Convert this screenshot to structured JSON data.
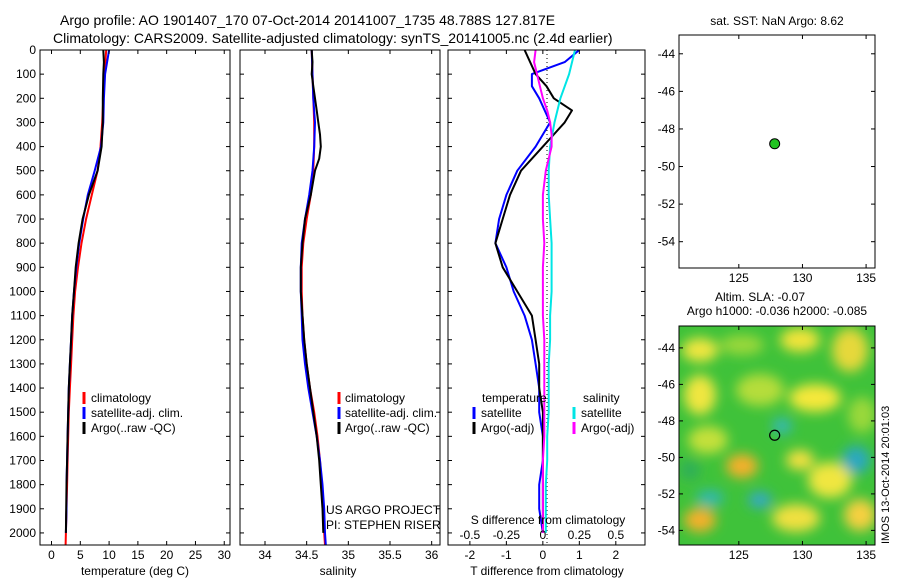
{
  "header": {
    "line1": "Argo profile: AO 1901407_170 07-Oct-2014 20141007_1735 48.788S 127.817E",
    "line2": "Climatology: CARS2009. Satellite-adjusted climatology: synTS_20141005.nc (2.4d earlier)"
  },
  "colors": {
    "climatology": "#ff0000",
    "satellite": "#0000ff",
    "argo": "#000000",
    "sal_satellite": "#00e5e5",
    "sal_argo": "#ff00ff",
    "float_marker": "#22c422"
  },
  "depth_ticks": [
    0,
    100,
    200,
    300,
    400,
    500,
    600,
    700,
    800,
    900,
    1000,
    1100,
    1200,
    1300,
    1400,
    1500,
    1600,
    1700,
    1800,
    1900,
    2000
  ],
  "chart_data": [
    {
      "type": "line",
      "id": "temperature-profile",
      "xlabel": "temperature (deg C)",
      "xlim": [
        -2,
        31
      ],
      "xticks": [
        0,
        5,
        10,
        15,
        20,
        25,
        30
      ],
      "ylim": [
        0,
        2050
      ],
      "yreversed": true,
      "legend_position": "bottom-center",
      "series": [
        {
          "name": "climatology",
          "color": "#ff0000",
          "depth": [
            0,
            100,
            200,
            300,
            400,
            500,
            600,
            700,
            800,
            900,
            1000,
            1100,
            1200,
            1300,
            1400,
            1500,
            1600,
            1700,
            1800,
            1900,
            2000,
            2050
          ],
          "x": [
            9.5,
            9.2,
            9.0,
            8.8,
            8.5,
            8.0,
            7.0,
            6.0,
            5.2,
            4.6,
            4.1,
            3.8,
            3.6,
            3.4,
            3.2,
            3.0,
            2.9,
            2.8,
            2.7,
            2.6,
            2.5,
            2.45
          ]
        },
        {
          "name": "satellite-adj. clim.",
          "color": "#0000ff",
          "depth": [
            0,
            100,
            200,
            300,
            400,
            500,
            600,
            700,
            800,
            900,
            1000,
            1100,
            1200,
            1300,
            1400,
            1500,
            1600,
            1700,
            1800,
            1900,
            2000
          ],
          "x": [
            10.0,
            9.3,
            9.1,
            9.0,
            8.6,
            7.5,
            6.3,
            5.5,
            4.8,
            4.3,
            3.9,
            3.6,
            3.4,
            3.2,
            3.0,
            2.9,
            2.8,
            2.7,
            2.6,
            2.6,
            2.5
          ]
        },
        {
          "name": "Argo(..raw -QC)",
          "color": "#000000",
          "depth": [
            0,
            50,
            100,
            200,
            300,
            400,
            500,
            600,
            700,
            800,
            900,
            1000,
            1100,
            1200,
            1300,
            1400,
            1500,
            1600,
            1700,
            1800,
            1900,
            2000
          ],
          "x": [
            9.0,
            9.1,
            9.0,
            8.9,
            8.9,
            8.7,
            8.0,
            6.5,
            5.4,
            4.7,
            4.2,
            3.9,
            3.6,
            3.4,
            3.2,
            3.0,
            2.9,
            2.8,
            2.7,
            2.6,
            2.55,
            2.5
          ]
        }
      ]
    },
    {
      "type": "line",
      "id": "salinity-profile",
      "xlabel": "salinity",
      "xlim": [
        33.7,
        36.1
      ],
      "xticks": [
        34,
        34.5,
        35,
        35.5,
        36
      ],
      "ylim": [
        0,
        2050
      ],
      "yreversed": true,
      "legend_position": "bottom-center",
      "annotation_lines": [
        "US ARGO PROJECT",
        "PI: STEPHEN RISER"
      ],
      "series": [
        {
          "name": "climatology",
          "color": "#ff0000",
          "depth": [
            0,
            100,
            200,
            300,
            400,
            500,
            600,
            700,
            800,
            900,
            1000,
            1100,
            1200,
            1300,
            1400,
            1500,
            1600,
            1700,
            1800,
            1900,
            2000,
            2050
          ],
          "x": [
            34.56,
            34.57,
            34.58,
            34.59,
            34.59,
            34.58,
            34.55,
            34.5,
            34.46,
            34.44,
            34.44,
            34.45,
            34.47,
            34.5,
            34.54,
            34.59,
            34.63,
            34.66,
            34.68,
            34.7,
            34.71,
            34.72
          ]
        },
        {
          "name": "satellite-adj. clim.",
          "color": "#0000ff",
          "depth": [
            0,
            100,
            200,
            300,
            400,
            500,
            600,
            700,
            800,
            900,
            1000,
            1100,
            1200,
            1300,
            1400,
            1500,
            1600,
            1700,
            1800,
            1900,
            2000,
            2050
          ],
          "x": [
            34.56,
            34.57,
            34.58,
            34.6,
            34.59,
            34.57,
            34.53,
            34.48,
            34.44,
            34.43,
            34.43,
            34.44,
            34.45,
            34.48,
            34.52,
            34.57,
            34.62,
            34.66,
            34.69,
            34.71,
            34.72,
            34.73
          ]
        },
        {
          "name": "Argo(..raw -QC)",
          "color": "#000000",
          "depth": [
            0,
            50,
            100,
            150,
            200,
            250,
            300,
            350,
            400,
            450,
            500,
            600,
            700,
            800,
            900,
            1000,
            1100,
            1200,
            1300,
            1400,
            1500,
            1600,
            1700,
            1800,
            1900,
            2000
          ],
          "x": [
            34.56,
            34.57,
            34.56,
            34.58,
            34.6,
            34.62,
            34.64,
            34.66,
            34.67,
            34.65,
            34.6,
            34.55,
            34.48,
            34.45,
            34.43,
            34.43,
            34.45,
            34.47,
            34.5,
            34.54,
            34.58,
            34.62,
            34.65,
            34.67,
            34.69,
            34.7
          ]
        }
      ]
    },
    {
      "type": "line",
      "id": "difference-profile",
      "xlabel": "T difference from climatology",
      "xlabel_top": "S difference from climatology",
      "xlim": [
        -2.6,
        2.8
      ],
      "xticks": [
        -2,
        -1,
        0,
        1,
        2
      ],
      "x2lim": [
        -0.65,
        0.7
      ],
      "x2ticks": [
        -0.5,
        -0.25,
        0,
        0.25,
        0.5
      ],
      "x2ticklabels": [
        "-0.5",
        "-0.25",
        "0",
        "0.25",
        "0.5"
      ],
      "ylim": [
        0,
        2050
      ],
      "yreversed": true,
      "zero_line": "dotted",
      "legend_groups": [
        {
          "title": "temperature",
          "entries": [
            {
              "name": "satellite",
              "color": "#0000ff"
            },
            {
              "name": "Argo(-adj)",
              "color": "#000000"
            }
          ]
        },
        {
          "title": "salinity",
          "entries": [
            {
              "name": "satellite",
              "color": "#00e5e5"
            },
            {
              "name": "Argo(-adj)",
              "color": "#ff00ff"
            }
          ]
        }
      ],
      "series": [
        {
          "name": "temperature satellite",
          "axis": "T",
          "color": "#0000ff",
          "depth": [
            0,
            50,
            100,
            150,
            200,
            300,
            400,
            500,
            600,
            700,
            800,
            900,
            1000,
            1100,
            1200,
            1300,
            1400,
            1500,
            1600,
            1700,
            1800,
            1900,
            2000
          ],
          "x": [
            1.0,
            0.6,
            -0.3,
            -0.3,
            -0.1,
            0.2,
            -0.2,
            -0.7,
            -1.0,
            -1.2,
            -1.3,
            -1.0,
            -0.8,
            -0.5,
            -0.3,
            -0.2,
            -0.1,
            -0.1,
            0.0,
            0.0,
            -0.1,
            -0.1,
            0.0
          ]
        },
        {
          "name": "temperature Argo(-adj)",
          "axis": "T",
          "color": "#000000",
          "depth": [
            0,
            100,
            150,
            200,
            250,
            300,
            350,
            400,
            450,
            500,
            600,
            700,
            800,
            900,
            1000,
            1100,
            1200,
            1300,
            1400,
            1500,
            1600,
            1700,
            1800,
            1900,
            2000
          ],
          "x": [
            -0.5,
            -0.2,
            0.1,
            0.3,
            0.8,
            0.6,
            0.3,
            0.0,
            -0.3,
            -0.6,
            -0.9,
            -1.1,
            -1.3,
            -1.1,
            -0.7,
            -0.3,
            -0.2,
            -0.1,
            -0.1,
            0.0,
            0.0,
            0.0,
            0.0,
            0.0,
            0.0
          ]
        },
        {
          "name": "salinity satellite",
          "axis": "S",
          "color": "#00e5e5",
          "depth": [
            0,
            100,
            200,
            300,
            400,
            500,
            600,
            700,
            800,
            900,
            1000,
            1100,
            1200,
            1300,
            1400,
            1500,
            1600,
            1700,
            1800,
            1900,
            2000
          ],
          "x": [
            0.22,
            0.18,
            0.12,
            0.08,
            0.05,
            0.04,
            0.04,
            0.05,
            0.06,
            0.06,
            0.06,
            0.05,
            0.05,
            0.04,
            0.04,
            0.04,
            0.03,
            0.03,
            0.02,
            0.02,
            0.02
          ]
        },
        {
          "name": "salinity Argo(-adj)",
          "axis": "S",
          "color": "#ff00ff",
          "depth": [
            0,
            50,
            100,
            150,
            200,
            250,
            300,
            350,
            400,
            450,
            500,
            600,
            700,
            800,
            900,
            1000,
            1100,
            1200,
            1300,
            1400,
            1500,
            1600,
            1700,
            1800,
            1900,
            2000
          ],
          "x": [
            -0.05,
            -0.06,
            -0.04,
            -0.02,
            0.0,
            0.03,
            0.05,
            0.06,
            0.06,
            0.04,
            0.02,
            0.0,
            0.0,
            0.01,
            0.0,
            0.0,
            0.0,
            0.01,
            0.01,
            0.01,
            0.01,
            0.01,
            0.0,
            0.0,
            0.0,
            0.0
          ]
        }
      ]
    },
    {
      "type": "scatter",
      "id": "sst-map",
      "title": "sat. SST: NaN Argo: 8.62",
      "xlim": [
        120.3,
        135.7
      ],
      "ylim": [
        -55.4,
        -43.0
      ],
      "xticks": [
        125,
        130,
        135
      ],
      "yticks": [
        -44,
        -46,
        -48,
        -50,
        -52,
        -54
      ],
      "points": [
        {
          "x": 127.817,
          "y": -48.788
        }
      ]
    },
    {
      "type": "heatmap",
      "id": "sla-map",
      "title_lines": [
        "Altim. SLA: -0.07",
        "Argo h1000: -0.036 h2000: -0.085"
      ],
      "side_text": "IMOS 13-Oct-2014 20:01:03",
      "xlim": [
        120.3,
        135.7
      ],
      "ylim": [
        -54.8,
        -42.8
      ],
      "xticks": [
        125,
        130,
        135
      ],
      "yticks": [
        -44,
        -46,
        -48,
        -50,
        -52,
        -54
      ],
      "points": [
        {
          "x": 127.817,
          "y": -48.788
        }
      ]
    }
  ]
}
